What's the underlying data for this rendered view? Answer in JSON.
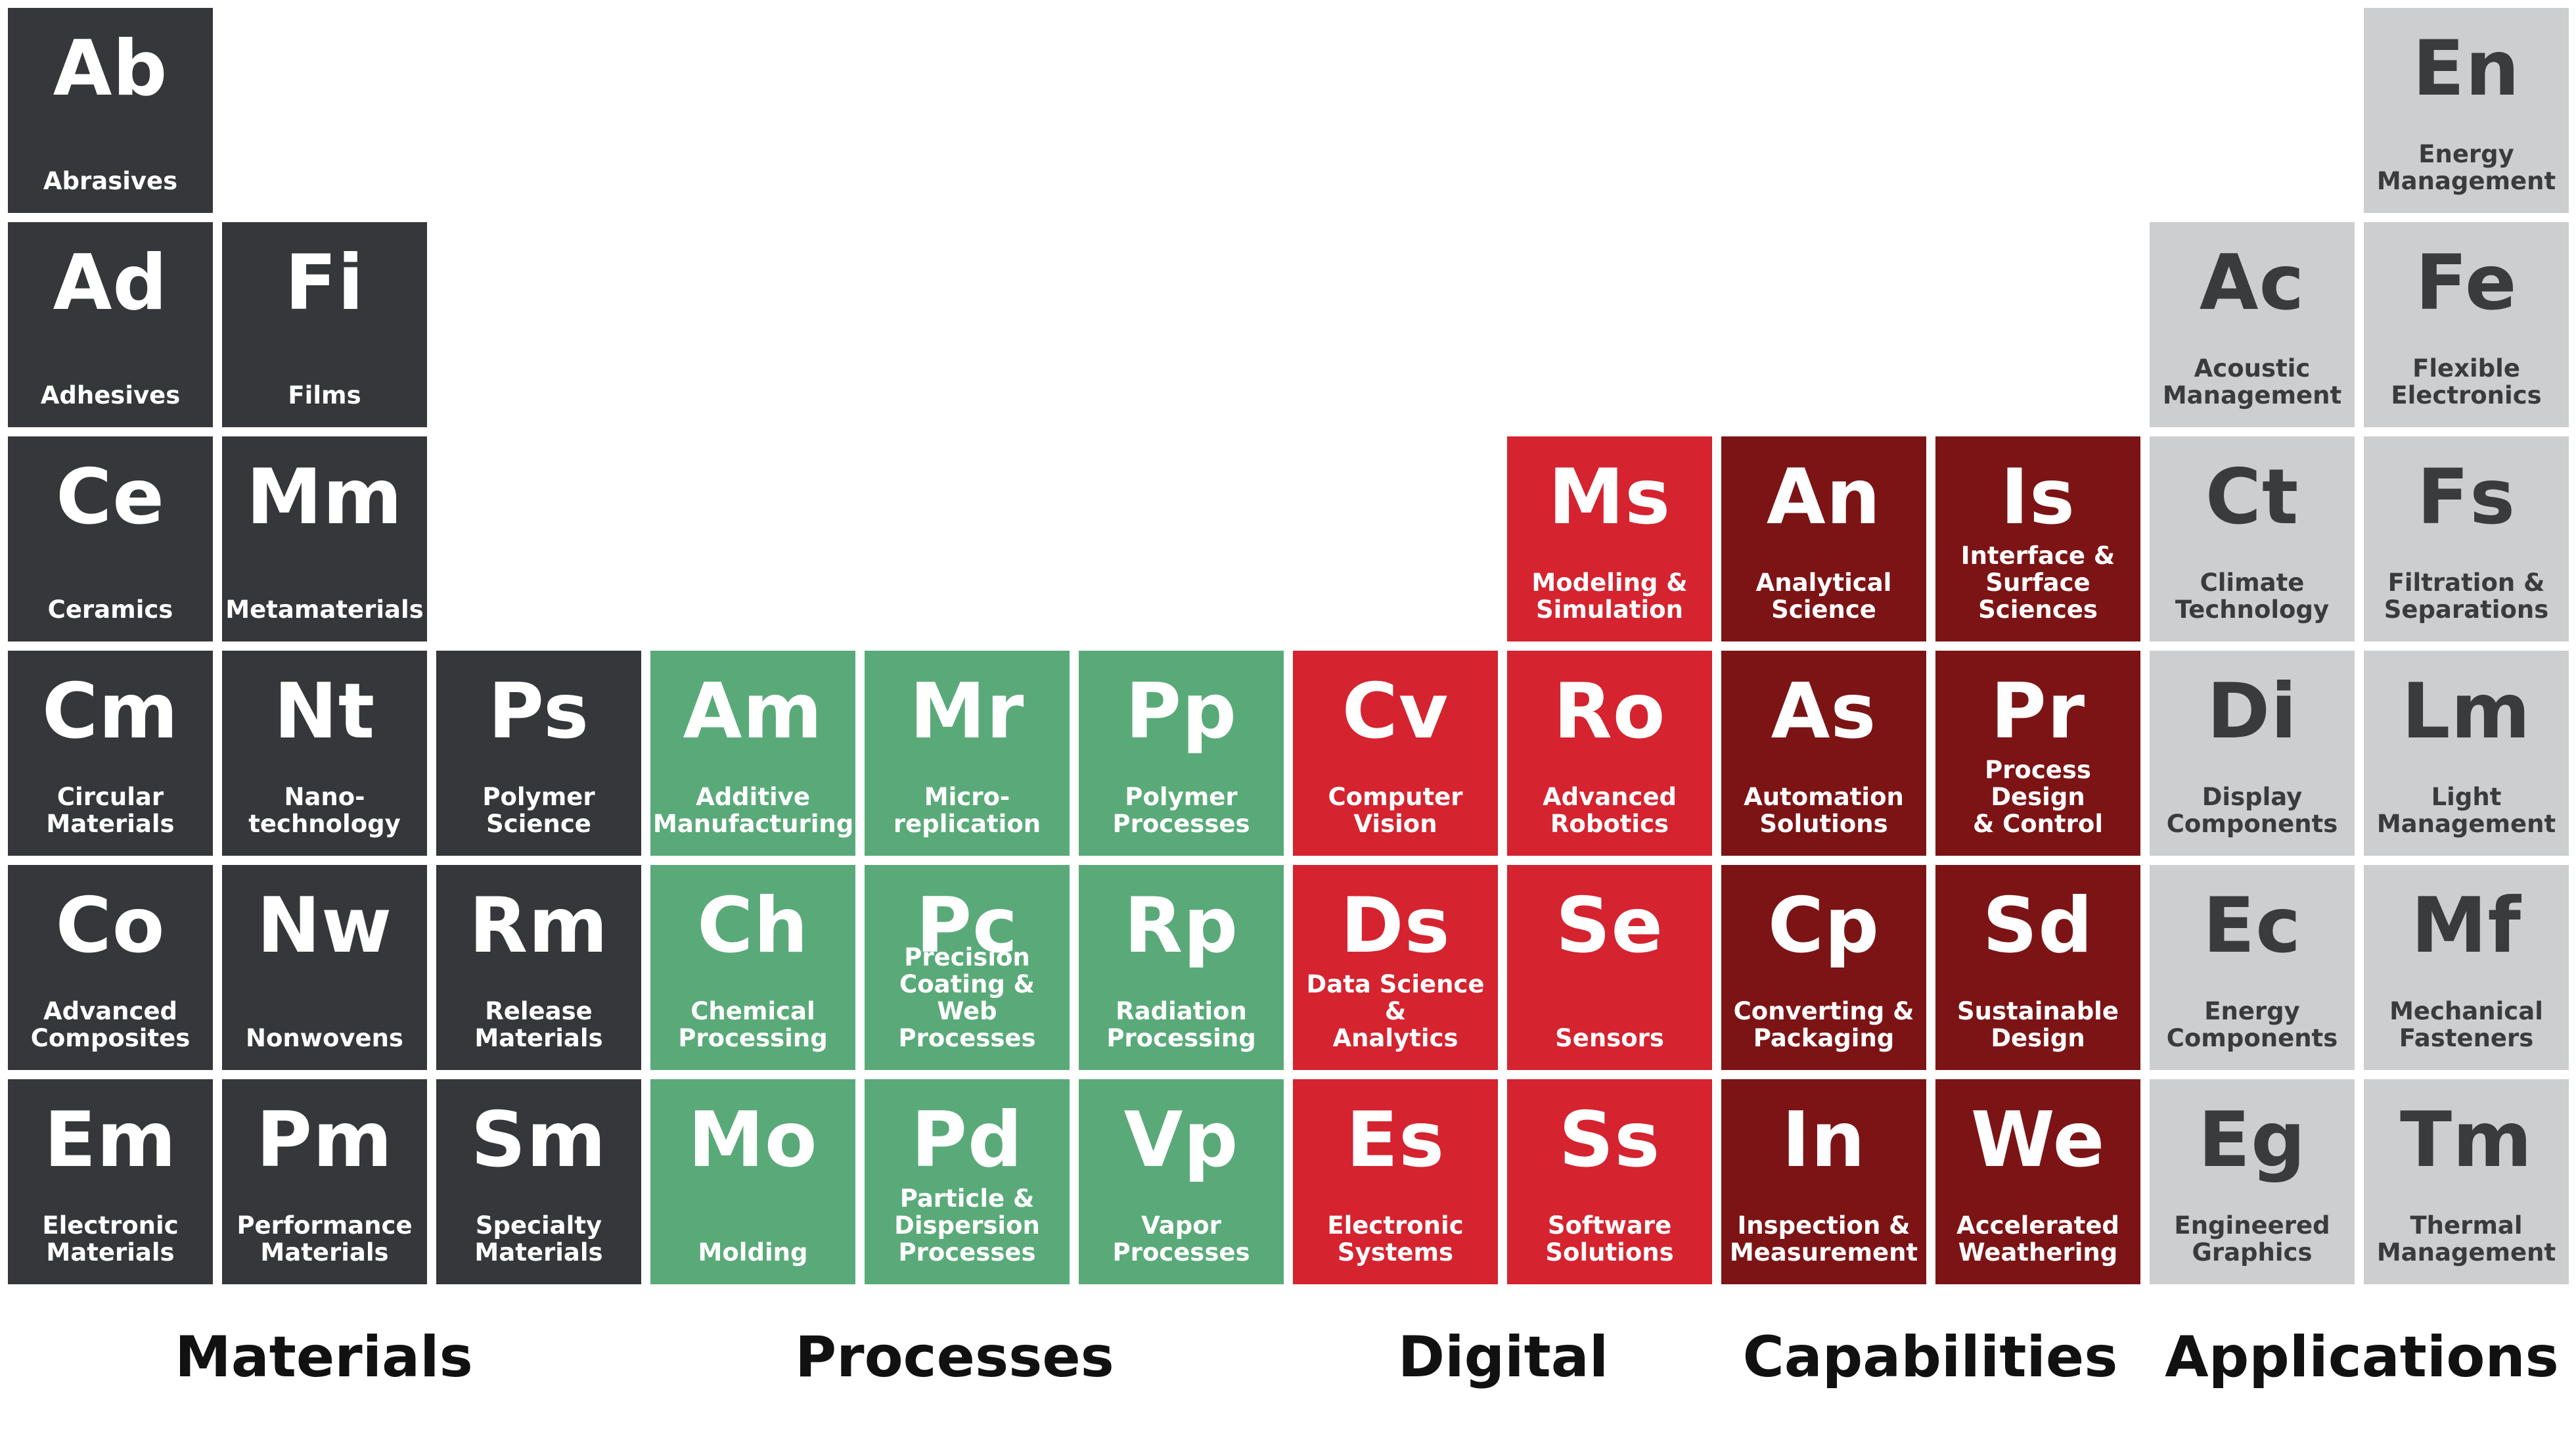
{
  "colors": {
    "materials": "#35373a",
    "processes": "#5aaa79",
    "digital": "#d5232f",
    "capabilities": "#7c1416",
    "applications": "#cdcecf",
    "applications_text": "#3a3b3d",
    "tile_text": "#ffffff"
  },
  "categories": [
    "Materials",
    "Processes",
    "Digital",
    "Capabilities",
    "Applications"
  ],
  "elements": [
    {
      "symbol": "Ab",
      "name": "Abrasives",
      "category": "materials",
      "row": 1,
      "col": 1
    },
    {
      "symbol": "Ad",
      "name": "Adhesives",
      "category": "materials",
      "row": 2,
      "col": 1
    },
    {
      "symbol": "Fi",
      "name": "Films",
      "category": "materials",
      "row": 2,
      "col": 2
    },
    {
      "symbol": "Ce",
      "name": "Ceramics",
      "category": "materials",
      "row": 3,
      "col": 1
    },
    {
      "symbol": "Mm",
      "name": "Metamaterials",
      "category": "materials",
      "row": 3,
      "col": 2
    },
    {
      "symbol": "Cm",
      "name": "Circular\nMaterials",
      "category": "materials",
      "row": 4,
      "col": 1
    },
    {
      "symbol": "Nt",
      "name": "Nano-\ntechnology",
      "category": "materials",
      "row": 4,
      "col": 2
    },
    {
      "symbol": "Ps",
      "name": "Polymer\nScience",
      "category": "materials",
      "row": 4,
      "col": 3
    },
    {
      "symbol": "Co",
      "name": "Advanced\nComposites",
      "category": "materials",
      "row": 5,
      "col": 1
    },
    {
      "symbol": "Nw",
      "name": "Nonwovens",
      "category": "materials",
      "row": 5,
      "col": 2
    },
    {
      "symbol": "Rm",
      "name": "Release\nMaterials",
      "category": "materials",
      "row": 5,
      "col": 3
    },
    {
      "symbol": "Em",
      "name": "Electronic\nMaterials",
      "category": "materials",
      "row": 6,
      "col": 1
    },
    {
      "symbol": "Pm",
      "name": "Performance\nMaterials",
      "category": "materials",
      "row": 6,
      "col": 2
    },
    {
      "symbol": "Sm",
      "name": "Specialty\nMaterials",
      "category": "materials",
      "row": 6,
      "col": 3
    },
    {
      "symbol": "Am",
      "name": "Additive\nManufacturing",
      "category": "processes",
      "row": 4,
      "col": 4
    },
    {
      "symbol": "Mr",
      "name": "Micro-\nreplication",
      "category": "processes",
      "row": 4,
      "col": 5
    },
    {
      "symbol": "Pp",
      "name": "Polymer\nProcesses",
      "category": "processes",
      "row": 4,
      "col": 6
    },
    {
      "symbol": "Ch",
      "name": "Chemical\nProcessing",
      "category": "processes",
      "row": 5,
      "col": 4
    },
    {
      "symbol": "Pc",
      "name": "Precision\nCoating & Web\nProcesses",
      "category": "processes",
      "row": 5,
      "col": 5
    },
    {
      "symbol": "Rp",
      "name": "Radiation\nProcessing",
      "category": "processes",
      "row": 5,
      "col": 6
    },
    {
      "symbol": "Mo",
      "name": "Molding",
      "category": "processes",
      "row": 6,
      "col": 4
    },
    {
      "symbol": "Pd",
      "name": "Particle &\nDispersion\nProcesses",
      "category": "processes",
      "row": 6,
      "col": 5
    },
    {
      "symbol": "Vp",
      "name": "Vapor\nProcesses",
      "category": "processes",
      "row": 6,
      "col": 6
    },
    {
      "symbol": "Ms",
      "name": "Modeling &\nSimulation",
      "category": "digital",
      "row": 3,
      "col": 8
    },
    {
      "symbol": "Cv",
      "name": "Computer\nVision",
      "category": "digital",
      "row": 4,
      "col": 7
    },
    {
      "symbol": "Ro",
      "name": "Advanced\nRobotics",
      "category": "digital",
      "row": 4,
      "col": 8
    },
    {
      "symbol": "Ds",
      "name": "Data Science &\nAnalytics",
      "category": "digital",
      "row": 5,
      "col": 7
    },
    {
      "symbol": "Se",
      "name": "Sensors",
      "category": "digital",
      "row": 5,
      "col": 8
    },
    {
      "symbol": "Es",
      "name": "Electronic\nSystems",
      "category": "digital",
      "row": 6,
      "col": 7
    },
    {
      "symbol": "Ss",
      "name": "Software\nSolutions",
      "category": "digital",
      "row": 6,
      "col": 8
    },
    {
      "symbol": "An",
      "name": "Analytical\nScience",
      "category": "capabilities",
      "row": 3,
      "col": 9
    },
    {
      "symbol": "Is",
      "name": "Interface &\nSurface\nSciences",
      "category": "capabilities",
      "row": 3,
      "col": 10
    },
    {
      "symbol": "As",
      "name": "Automation\nSolutions",
      "category": "capabilities",
      "row": 4,
      "col": 9
    },
    {
      "symbol": "Pr",
      "name": "Process Design\n& Control",
      "category": "capabilities",
      "row": 4,
      "col": 10
    },
    {
      "symbol": "Cp",
      "name": "Converting &\nPackaging",
      "category": "capabilities",
      "row": 5,
      "col": 9
    },
    {
      "symbol": "Sd",
      "name": "Sustainable\nDesign",
      "category": "capabilities",
      "row": 5,
      "col": 10
    },
    {
      "symbol": "In",
      "name": "Inspection &\nMeasurement",
      "category": "capabilities",
      "row": 6,
      "col": 9
    },
    {
      "symbol": "We",
      "name": "Accelerated\nWeathering",
      "category": "capabilities",
      "row": 6,
      "col": 10
    },
    {
      "symbol": "En",
      "name": "Energy\nManagement",
      "category": "applications",
      "row": 1,
      "col": 12
    },
    {
      "symbol": "Ac",
      "name": "Acoustic\nManagement",
      "category": "applications",
      "row": 2,
      "col": 11
    },
    {
      "symbol": "Fe",
      "name": "Flexible\nElectronics",
      "category": "applications",
      "row": 2,
      "col": 12
    },
    {
      "symbol": "Ct",
      "name": "Climate\nTechnology",
      "category": "applications",
      "row": 3,
      "col": 11
    },
    {
      "symbol": "Fs",
      "name": "Filtration &\nSeparations",
      "category": "applications",
      "row": 3,
      "col": 12
    },
    {
      "symbol": "Di",
      "name": "Display\nComponents",
      "category": "applications",
      "row": 4,
      "col": 11
    },
    {
      "symbol": "Lm",
      "name": "Light\nManagement",
      "category": "applications",
      "row": 4,
      "col": 12
    },
    {
      "symbol": "Ec",
      "name": "Energy\nComponents",
      "category": "applications",
      "row": 5,
      "col": 11
    },
    {
      "symbol": "Mf",
      "name": "Mechanical\nFasteners",
      "category": "applications",
      "row": 5,
      "col": 12
    },
    {
      "symbol": "Eg",
      "name": "Engineered\nGraphics",
      "category": "applications",
      "row": 6,
      "col": 11
    },
    {
      "symbol": "Tm",
      "name": "Thermal\nManagement",
      "category": "applications",
      "row": 6,
      "col": 12
    }
  ]
}
